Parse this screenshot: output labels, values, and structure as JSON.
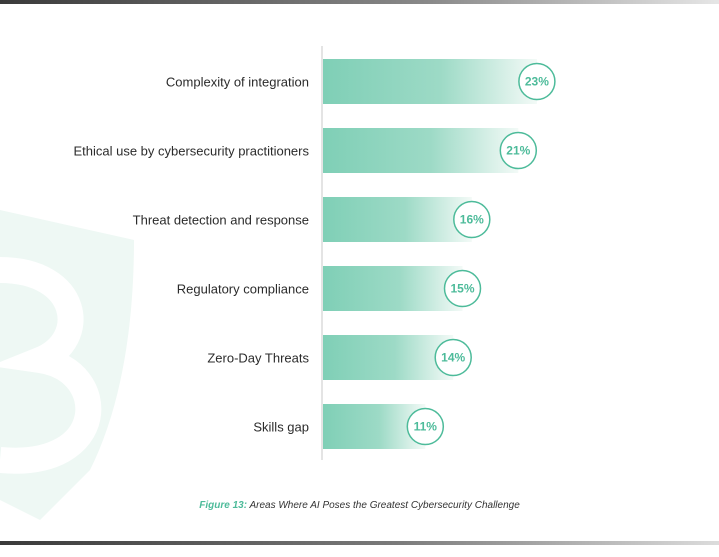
{
  "colors": {
    "bar_start": "#7fcfb6",
    "bar_end": "#f3faf7",
    "accent": "#4dbb9a",
    "axis": "#c9c9c9",
    "watermark": "#e6f5f0"
  },
  "watermark_icon": "brand-shield-logo",
  "caption": {
    "figure_label": "Figure 13:",
    "text": "Areas Where AI Poses the Greatest Cybersecurity Challenge"
  },
  "chart_data": {
    "type": "bar",
    "orientation": "horizontal",
    "categories": [
      "Complexity of integration",
      "Ethical use by cybersecurity practitioners",
      "Threat detection and response",
      "Regulatory compliance",
      "Zero-Day Threats",
      "Skills gap"
    ],
    "values": [
      23,
      21,
      16,
      15,
      14,
      11
    ],
    "value_labels": [
      "23%",
      "21%",
      "16%",
      "15%",
      "14%",
      "11%"
    ],
    "unit": "%",
    "xlim": [
      0,
      40
    ],
    "grid": false,
    "legend": "none"
  }
}
